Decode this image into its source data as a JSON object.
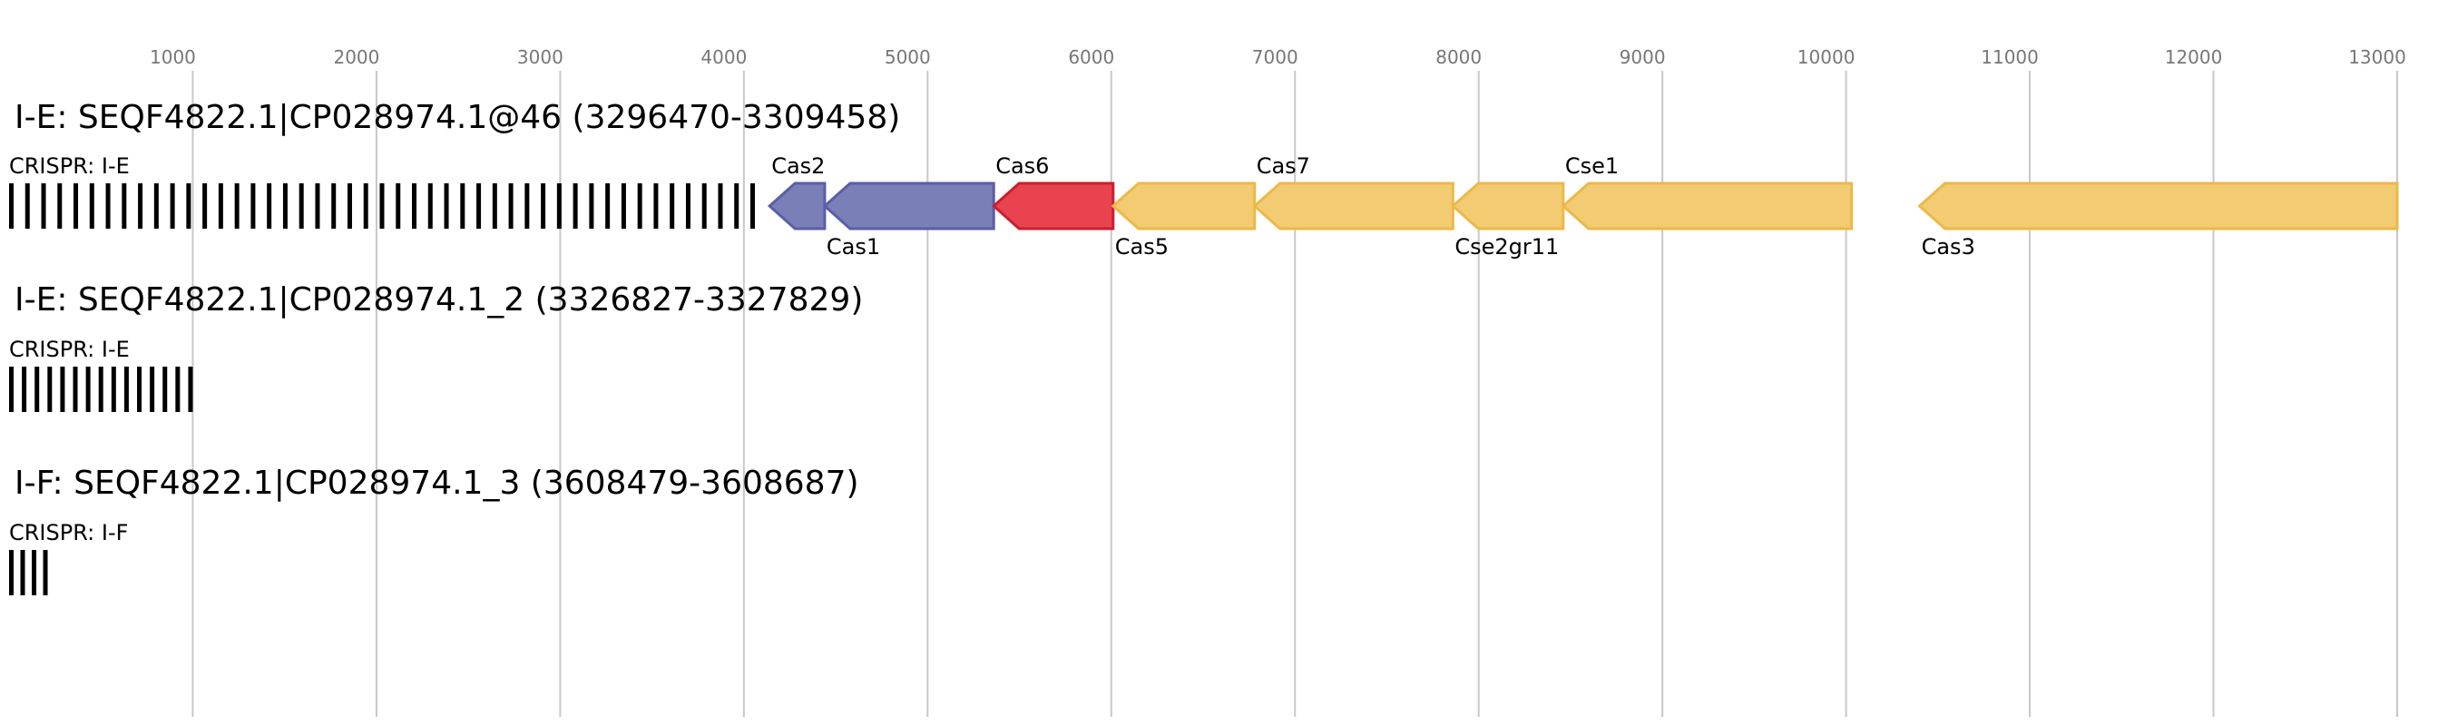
{
  "axis": {
    "min": 0,
    "max": 13300,
    "ticks": [
      1000,
      2000,
      3000,
      4000,
      5000,
      6000,
      7000,
      8000,
      9000,
      10000,
      11000,
      12000,
      13000
    ],
    "tick_labels": [
      "1000",
      "2000",
      "3000",
      "4000",
      "5000",
      "6000",
      "7000",
      "8000",
      "9000",
      "10000",
      "11000",
      "12000",
      "13000"
    ],
    "grid": true
  },
  "colors": {
    "grid": "#c8c8c8",
    "crispr": "#000000",
    "cas_core": "#7b7fb8",
    "cas_core_stroke": "#5a5ea6",
    "cas6": "#e8434f",
    "cas6_stroke": "#c9202e",
    "cas_other": "#f2cb73",
    "cas_other_stroke": "#ebb949"
  },
  "loci": [
    {
      "title": "I-E: SEQF4822.1|CP028974.1@46 (3296470-3309458)",
      "crispr": {
        "label": "CRISPR: I-E",
        "start": 0,
        "end": 4060,
        "count": 47
      },
      "genes": [
        {
          "name": "Cas2",
          "start": 4140,
          "end": 4440,
          "strand": "-",
          "color": "cas_core",
          "label_pos": "above"
        },
        {
          "name": "Cas1",
          "start": 4440,
          "end": 5360,
          "strand": "-",
          "color": "cas_core",
          "label_pos": "below"
        },
        {
          "name": "Cas6",
          "start": 5360,
          "end": 6010,
          "strand": "-",
          "color": "cas6",
          "label_pos": "above"
        },
        {
          "name": "Cas5",
          "start": 6010,
          "end": 6780,
          "strand": "-",
          "color": "cas_other",
          "label_pos": "below"
        },
        {
          "name": "Cas7",
          "start": 6780,
          "end": 7860,
          "strand": "-",
          "color": "cas_other",
          "label_pos": "above"
        },
        {
          "name": "Cse2gr11",
          "start": 7860,
          "end": 8460,
          "strand": "-",
          "color": "cas_other",
          "label_pos": "below"
        },
        {
          "name": "Cse1",
          "start": 8460,
          "end": 10030,
          "strand": "-",
          "color": "cas_other",
          "label_pos": "above"
        },
        {
          "name": "Cas3",
          "start": 10400,
          "end": 13000,
          "strand": "-",
          "color": "cas_other",
          "label_pos": "below"
        }
      ]
    },
    {
      "title": "I-E: SEQF4822.1|CP028974.1_2 (3326827-3327829)",
      "crispr": {
        "label": "CRISPR: I-E",
        "start": 0,
        "end": 1000,
        "count": 15
      },
      "genes": []
    },
    {
      "title": "I-F: SEQF4822.1|CP028974.1_3 (3608479-3608687)",
      "crispr": {
        "label": "CRISPR: I-F",
        "start": 0,
        "end": 210,
        "count": 4
      },
      "genes": []
    }
  ]
}
